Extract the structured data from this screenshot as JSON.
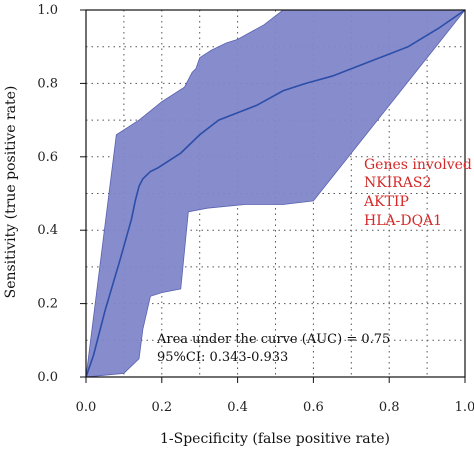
{
  "chart_data": {
    "type": "line",
    "title": "",
    "xlabel": "1-Specificity (false positive rate)",
    "ylabel": "Sensitivity (true positive rate)",
    "xlim": [
      0,
      1
    ],
    "ylim": [
      0,
      1
    ],
    "x_ticks": [
      "0.0",
      "0.2",
      "0.4",
      "0.6",
      "0.8",
      "1.0"
    ],
    "y_ticks": [
      "0.0",
      "0.2",
      "0.4",
      "0.6",
      "0.8",
      "1.0"
    ],
    "grid": "dotted",
    "diagonal_reference": true,
    "series": [
      {
        "color": "#2c4ea8",
        "x": [
          0,
          0.02,
          0.05,
          0.09,
          0.12,
          0.13,
          0.14,
          0.15,
          0.16,
          0.17,
          0.19,
          0.22,
          0.25,
          0.28,
          0.3,
          0.35,
          0.4,
          0.45,
          0.52,
          0.58,
          0.65,
          0.75,
          0.85,
          0.93,
          1.0
        ],
        "y": [
          0,
          0.06,
          0.18,
          0.32,
          0.43,
          0.48,
          0.52,
          0.54,
          0.55,
          0.56,
          0.57,
          0.59,
          0.61,
          0.64,
          0.66,
          0.7,
          0.72,
          0.74,
          0.78,
          0.8,
          0.82,
          0.86,
          0.9,
          0.95,
          1.0
        ]
      }
    ],
    "confidence_band": {
      "color": "#7f86c9",
      "upper": {
        "x": [
          0,
          0.08,
          0.14,
          0.2,
          0.26,
          0.27,
          0.28,
          0.29,
          0.3,
          0.33,
          0.37,
          0.4,
          0.47,
          0.52,
          1.0
        ],
        "y": [
          0,
          0.66,
          0.7,
          0.75,
          0.79,
          0.81,
          0.83,
          0.84,
          0.87,
          0.89,
          0.91,
          0.92,
          0.96,
          1.0,
          1.0
        ]
      },
      "lower": {
        "x": [
          0,
          0.1,
          0.14,
          0.15,
          0.17,
          0.2,
          0.25,
          0.27,
          0.32,
          0.42,
          0.52,
          0.6,
          1.0
        ],
        "y": [
          0,
          0.01,
          0.05,
          0.13,
          0.22,
          0.23,
          0.24,
          0.45,
          0.46,
          0.47,
          0.47,
          0.48,
          1.0
        ]
      }
    },
    "annotations": {
      "auc": "Area under the curve (AUC) = 0.75",
      "ci": "95%CI: 0.343-0.933",
      "genes_title": "Genes involved",
      "genes": [
        "NKIRAS2",
        "AKTIP",
        "HLA-DQA1"
      ],
      "genes_color": "#d42a2a"
    }
  }
}
